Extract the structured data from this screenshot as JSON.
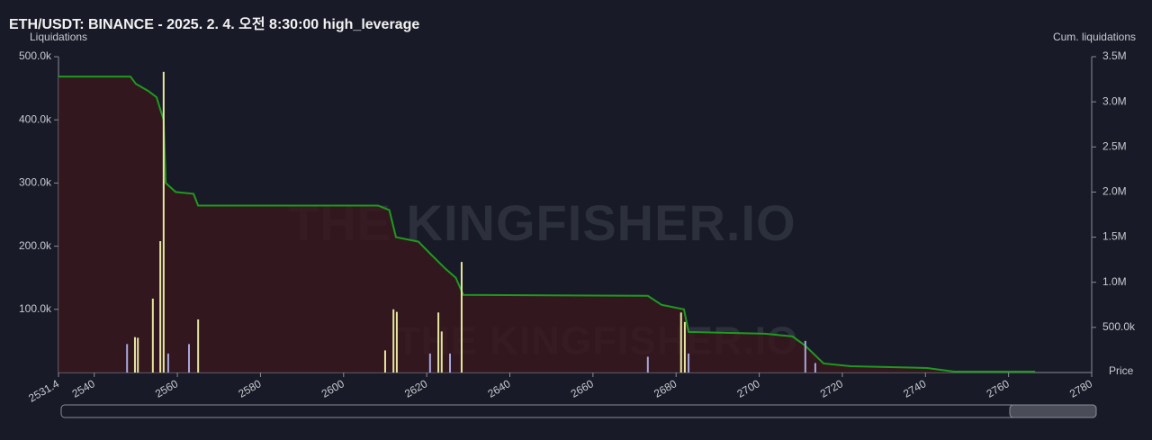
{
  "chart_data": {
    "type": "combo",
    "title": "ETH/USDT: BINANCE - 2025. 2. 4. 오전 8:30:00 high_leverage",
    "y_label": "Liquidations",
    "y2_label": "Cum. liquidations",
    "x_label": "Price",
    "watermark": "THE KINGFISHER.IO",
    "xlim": [
      2531.4,
      2780
    ],
    "xticks": [
      2531.4,
      2540,
      2560,
      2580,
      2600,
      2620,
      2640,
      2660,
      2680,
      2700,
      2720,
      2740,
      2760,
      2780
    ],
    "ylim": [
      0,
      500000
    ],
    "yticks": [
      {
        "value": 100000,
        "label": "100.0k"
      },
      {
        "value": 200000,
        "label": "200.0k"
      },
      {
        "value": 300000,
        "label": "300.0k"
      },
      {
        "value": 400000,
        "label": "400.0k"
      },
      {
        "value": 500000,
        "label": "500.0k"
      }
    ],
    "y2lim": [
      0,
      3500000
    ],
    "y2ticks": [
      {
        "value": 500000,
        "label": "500.0k"
      },
      {
        "value": 1000000,
        "label": "1.0M"
      },
      {
        "value": 1500000,
        "label": "1.5M"
      },
      {
        "value": 2000000,
        "label": "2.0M"
      },
      {
        "value": 2500000,
        "label": "2.5M"
      },
      {
        "value": 3000000,
        "label": "3.0M"
      },
      {
        "value": 3500000,
        "label": "3.5M"
      }
    ],
    "series": [
      {
        "type": "bar",
        "axis": "y",
        "x": [
          2547.9,
          2549.8,
          2550.5,
          2554.1,
          2555.9,
          2556.7,
          2557.8,
          2562.8,
          2565,
          2610,
          2612,
          2612.8,
          2620.8,
          2622.8,
          2623.6,
          2625.6,
          2628.4,
          2673.2,
          2681.2,
          2682.1,
          2683,
          2711.1,
          2713.5
        ],
        "values": [
          45000,
          56000,
          55000,
          117000,
          208000,
          476000,
          30000,
          45000,
          84000,
          35000,
          100000,
          96000,
          30000,
          95000,
          65000,
          30000,
          175000,
          25000,
          95000,
          80000,
          30000,
          50000,
          15000
        ],
        "colors": [
          "#a7a7dc",
          "#e6e6a0",
          "#e6e6a0",
          "#e6e6a0",
          "#e6e6a0",
          "#e6e6a0",
          "#a7a7dc",
          "#a7a7dc",
          "#e6e6a0",
          "#e6e6a0",
          "#e6e6a0",
          "#e6e6a0",
          "#a7a7dc",
          "#e6e6a0",
          "#e6e6a0",
          "#a7a7dc",
          "#e6e6a0",
          "#a7a7dc",
          "#e6e6a0",
          "#e6e6a0",
          "#a7a7dc",
          "#a7a7dc",
          "#a7a7dc"
        ]
      },
      {
        "type": "line",
        "axis": "y2",
        "color": "#1f9a1f",
        "fill": "#3a161d",
        "x": [
          2531.4,
          2548.7,
          2550,
          2553,
          2555,
          2556,
          2556.7,
          2557.2,
          2559.6,
          2563.9,
          2565,
          2608.3,
          2611,
          2612.6,
          2618,
          2621.2,
          2624.5,
          2627,
          2628.8,
          2673.2,
          2676.5,
          2681.9,
          2683,
          2701.4,
          2708,
          2711,
          2715.5,
          2722,
          2740.4,
          2746.9,
          2766.4
        ],
        "values": [
          3280000,
          3280000,
          3200000,
          3120000,
          3050000,
          2900000,
          2800000,
          2100000,
          2000000,
          1980000,
          1850000,
          1850000,
          1800000,
          1500000,
          1450000,
          1300000,
          1150000,
          1050000,
          860000,
          850000,
          750000,
          700000,
          450000,
          430000,
          400000,
          300000,
          100000,
          70000,
          50000,
          10000,
          10000
        ]
      }
    ]
  }
}
